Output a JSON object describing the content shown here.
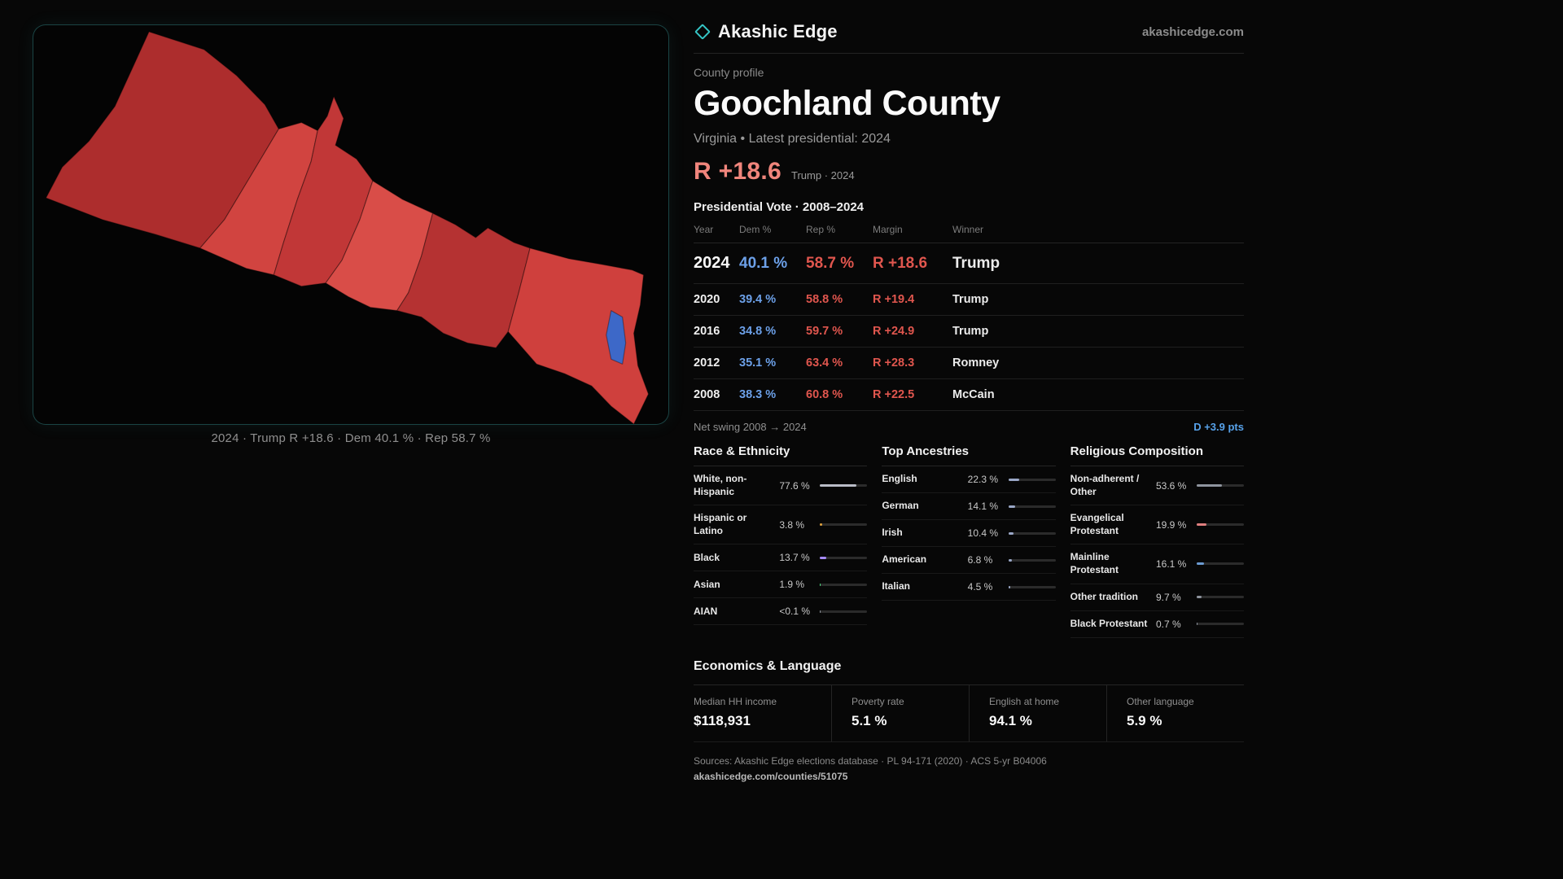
{
  "brand": {
    "name": "Akashic Edge",
    "domain": "akashicedge.com"
  },
  "colors": {
    "accent_teal": "#35c6c6",
    "dem_blue": "#6ca0e8",
    "rep_red": "#e0564e",
    "headline_salmon": "#f0857c",
    "swing_blue": "#57a2ea",
    "map_reds": [
      "#ad2d2d",
      "#d14440",
      "#c13737",
      "#d94d48",
      "#b53232",
      "#cf403d"
    ],
    "map_blue": "#3d68c8"
  },
  "map": {
    "caption": "2024 · Trump R +18.6 · Dem 40.1 % · Rep 58.7 %"
  },
  "profile": {
    "kicker": "County profile",
    "title": "Goochland County",
    "subtitle": "Virginia • Latest presidential: 2024",
    "margin": "R +18.6",
    "margin_note": "Trump · 2024"
  },
  "vote": {
    "title": "Presidential Vote · 2008–2024",
    "columns": [
      "Year",
      "Dem %",
      "Rep %",
      "Margin",
      "Winner"
    ],
    "rows": [
      {
        "year": "2024",
        "dem": "40.1 %",
        "rep": "58.7 %",
        "margin": "R +18.6",
        "winner": "Trump"
      },
      {
        "year": "2020",
        "dem": "39.4 %",
        "rep": "58.8 %",
        "margin": "R +19.4",
        "winner": "Trump"
      },
      {
        "year": "2016",
        "dem": "34.8 %",
        "rep": "59.7 %",
        "margin": "R +24.9",
        "winner": "Trump"
      },
      {
        "year": "2012",
        "dem": "35.1 %",
        "rep": "63.4 %",
        "margin": "R +28.3",
        "winner": "Romney"
      },
      {
        "year": "2008",
        "dem": "38.3 %",
        "rep": "60.8 %",
        "margin": "R +22.5",
        "winner": "McCain"
      }
    ]
  },
  "swing": {
    "label": "Net swing 2008 → 2024",
    "value": "D +3.9 pts"
  },
  "panels": [
    {
      "title": "Race & Ethnicity",
      "rows": [
        {
          "label": "White, non-Hispanic",
          "value": "77.6 %",
          "pct": 77.6,
          "color": "#b9bcc6"
        },
        {
          "label": "Hispanic or Latino",
          "value": "3.8 %",
          "pct": 3.8,
          "color": "#e0a23d"
        },
        {
          "label": "Black",
          "value": "13.7 %",
          "pct": 13.7,
          "color": "#a78bfa"
        },
        {
          "label": "Asian",
          "value": "1.9 %",
          "pct": 1.9,
          "color": "#4ade80"
        },
        {
          "label": "AIAN",
          "value": "<0.1 %",
          "pct": 0.1,
          "color": "#8e949e"
        }
      ]
    },
    {
      "title": "Top Ancestries",
      "rows": [
        {
          "label": "English",
          "value": "22.3 %",
          "pct": 22.3,
          "color": "#9aa7c7"
        },
        {
          "label": "German",
          "value": "14.1 %",
          "pct": 14.1,
          "color": "#9aa7c7"
        },
        {
          "label": "Irish",
          "value": "10.4 %",
          "pct": 10.4,
          "color": "#9aa7c7"
        },
        {
          "label": "American",
          "value": "6.8 %",
          "pct": 6.8,
          "color": "#9aa7c7"
        },
        {
          "label": "Italian",
          "value": "4.5 %",
          "pct": 4.5,
          "color": "#9aa7c7"
        }
      ]
    },
    {
      "title": "Religious Composition",
      "rows": [
        {
          "label": "Non-adherent / Other",
          "value": "53.6 %",
          "pct": 53.6,
          "color": "#8e949e"
        },
        {
          "label": "Evangelical Protestant",
          "value": "19.9 %",
          "pct": 19.9,
          "color": "#e07f7f"
        },
        {
          "label": "Mainline Protestant",
          "value": "16.1 %",
          "pct": 16.1,
          "color": "#6b9bd2"
        },
        {
          "label": "Other tradition",
          "value": "9.7 %",
          "pct": 9.7,
          "color": "#8e949e"
        },
        {
          "label": "Black Protestant",
          "value": "0.7 %",
          "pct": 0.7,
          "color": "#8e949e"
        }
      ]
    }
  ],
  "economics": {
    "title": "Economics & Language",
    "stats": [
      {
        "label": "Median HH income",
        "value": "$118,931"
      },
      {
        "label": "Poverty rate",
        "value": "5.1 %"
      },
      {
        "label": "English at home",
        "value": "94.1 %"
      },
      {
        "label": "Other language",
        "value": "5.9 %"
      }
    ]
  },
  "footer": {
    "sources": "Sources: Akashic Edge elections database · PL 94-171 (2020) · ACS 5-yr B04006",
    "permalink": "akashicedge.com/counties/51075"
  }
}
